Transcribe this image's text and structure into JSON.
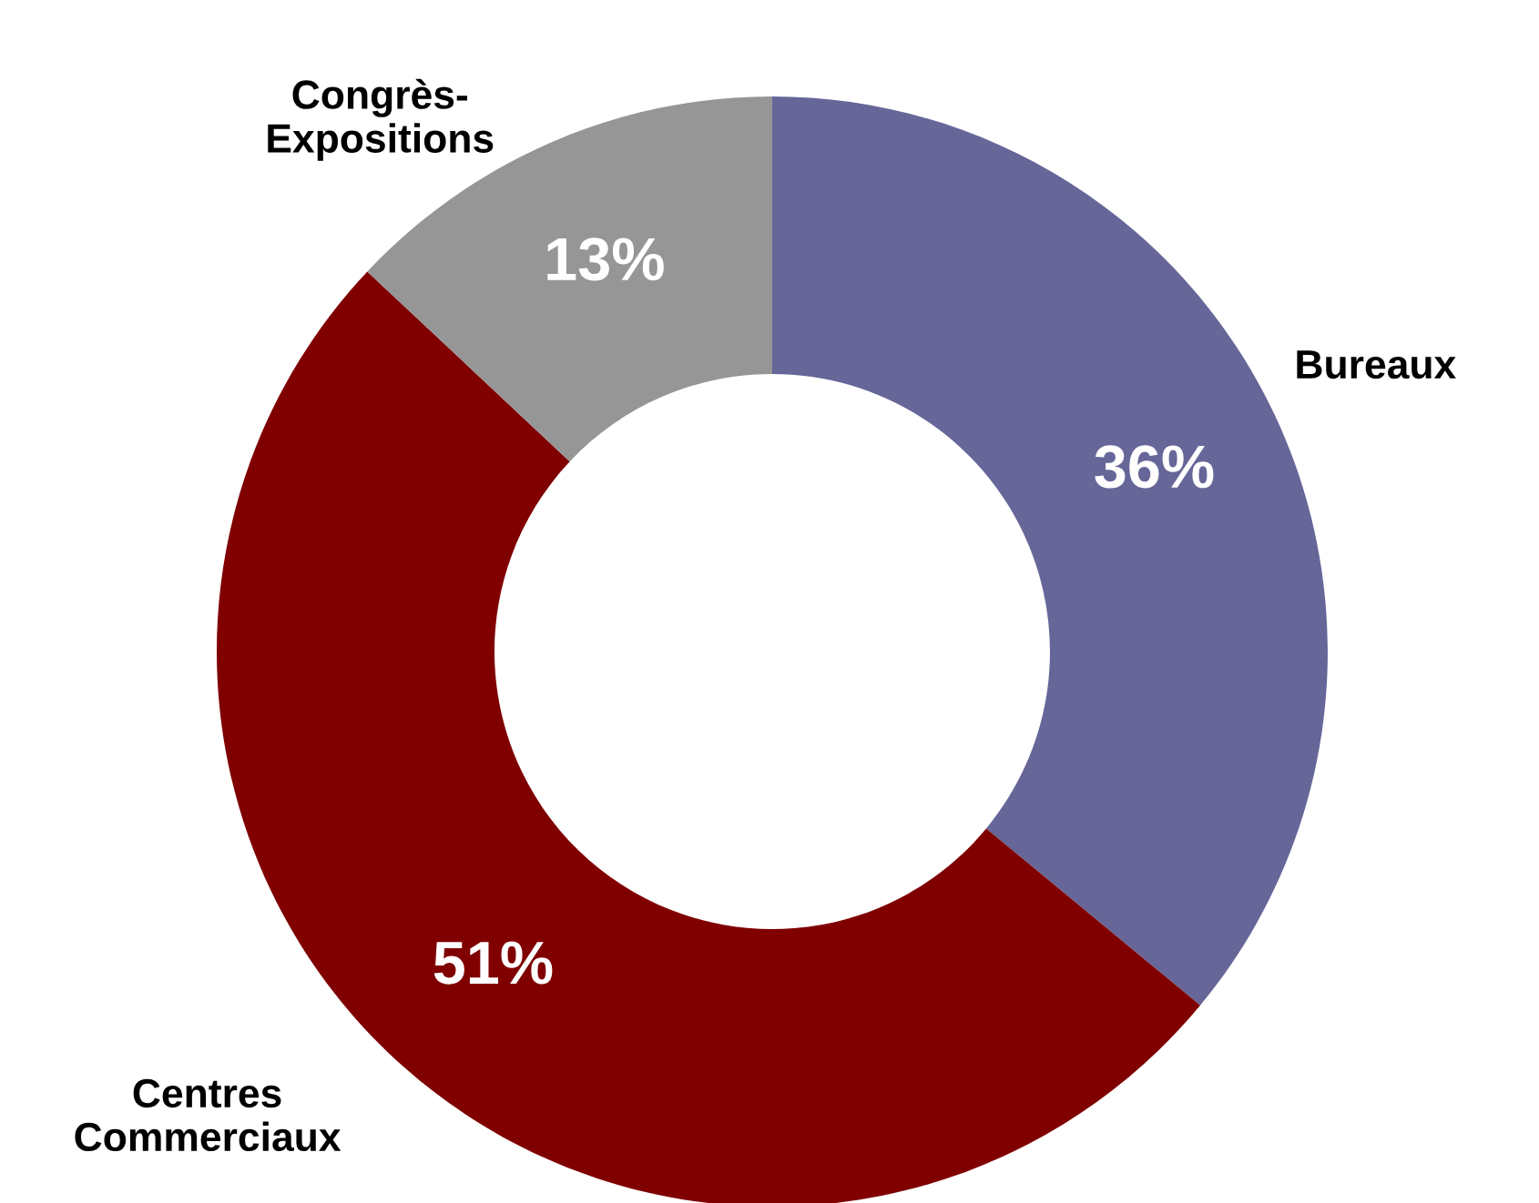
{
  "chart_data": {
    "type": "donut",
    "categories": [
      "Bureaux",
      "Centres\nCommerciaux",
      "Congrès-\nExpositions"
    ],
    "values": [
      36,
      51,
      13
    ],
    "colors": [
      "#666699",
      "#800000",
      "#969696"
    ],
    "value_labels": [
      "36%",
      "51%",
      "13%"
    ],
    "legend": false
  }
}
